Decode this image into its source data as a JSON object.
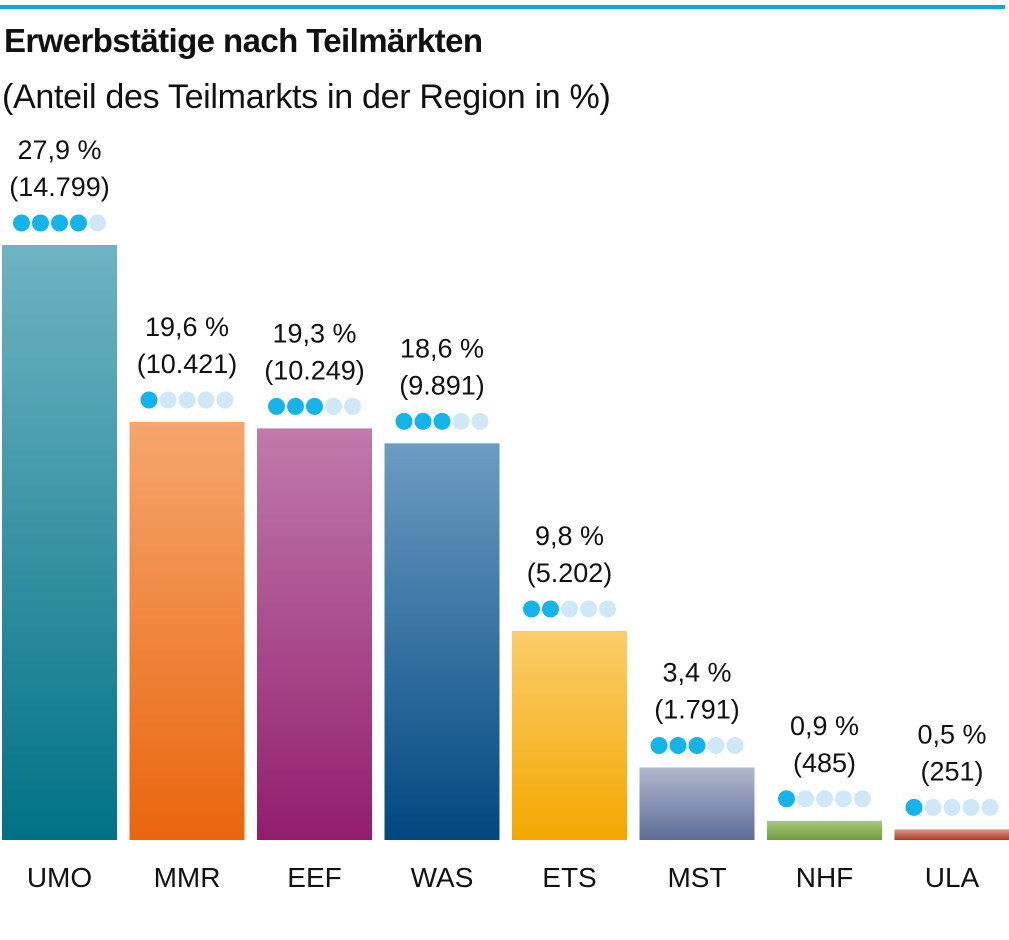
{
  "title": "Erwerbstätige nach Teilmärkten",
  "subtitle": "(Anteil des Teilmarkts in der Region in %)",
  "chart_data": {
    "type": "bar",
    "categories": [
      "UMO",
      "MMR",
      "EEF",
      "WAS",
      "ETS",
      "MST",
      "NHF",
      "ULA"
    ],
    "values": [
      27.9,
      19.6,
      19.3,
      18.6,
      9.8,
      3.4,
      0.9,
      0.5
    ],
    "value_labels": [
      "27,9 %",
      "19,6 %",
      "19,3 %",
      "18,6 %",
      "9,8 %",
      "3,4 %",
      "0,9 %",
      "0,5 %"
    ],
    "count_labels": [
      "(14.799)",
      "(10.421)",
      "(10.249)",
      "(9.891)",
      "(5.202)",
      "(1.791)",
      "(485)",
      "(251)"
    ],
    "dot_ratings": [
      4,
      1,
      3,
      3,
      2,
      3,
      1,
      1
    ],
    "dot_max": 5,
    "ylim": [
      0,
      27.9
    ],
    "grid": false,
    "legend": "none",
    "xlabel": "",
    "ylabel": "",
    "colors": {
      "dot_filled": "#14b4ea",
      "dot_empty": "#cfe8f7",
      "bars": [
        [
          "#6fb3c2",
          "#007286"
        ],
        [
          "#f5a66d",
          "#ea650d"
        ],
        [
          "#c07aab",
          "#921d6c"
        ],
        [
          "#6c9cc2",
          "#00477f"
        ],
        [
          "#fbcd6a",
          "#f4a700"
        ],
        [
          "#b1b8cf",
          "#5d6d96"
        ],
        [
          "#a7c97c",
          "#6f9d3a"
        ],
        [
          "#d99c8c",
          "#ac3a25"
        ]
      ]
    }
  }
}
